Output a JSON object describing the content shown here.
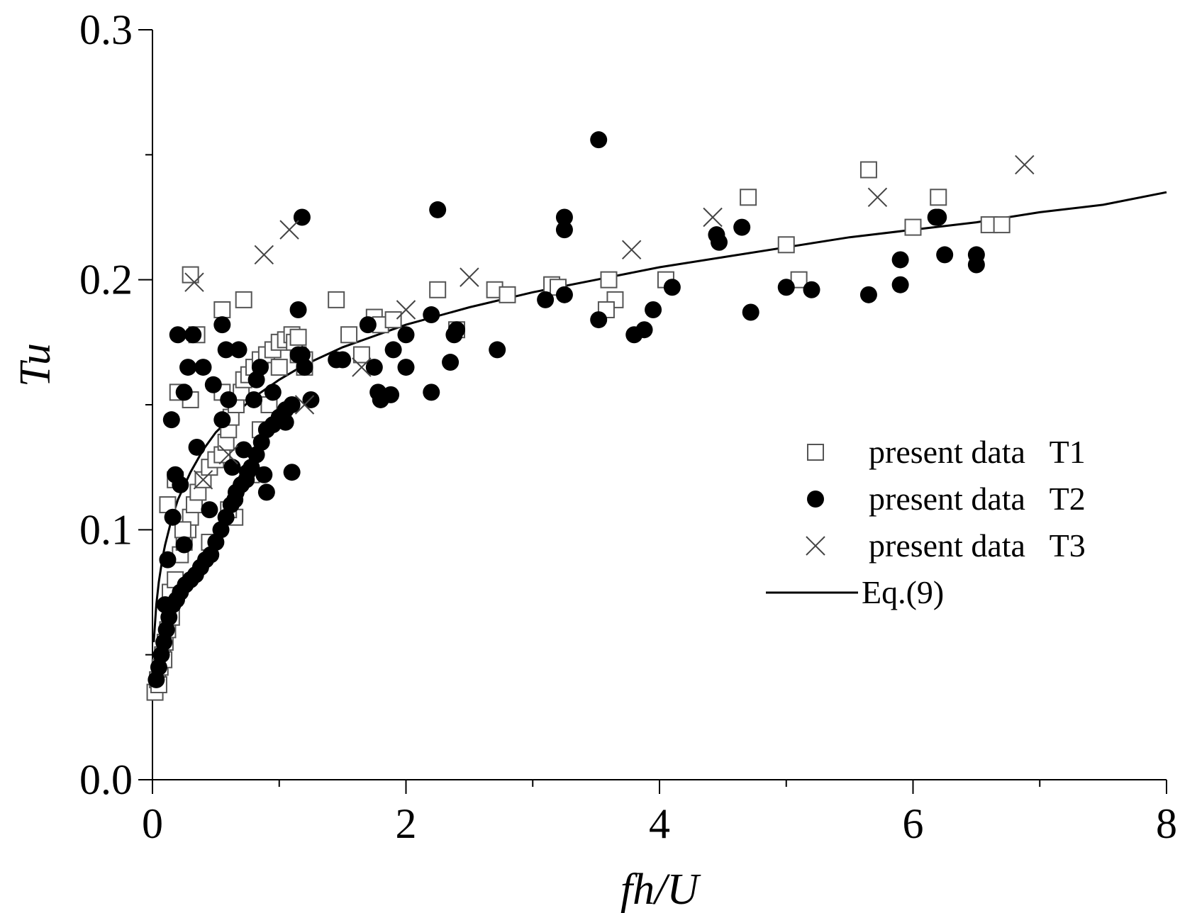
{
  "chart_data": {
    "type": "scatter",
    "title": "",
    "xlabel": "fh/U",
    "ylabel": "Tu",
    "xlim": [
      0,
      8
    ],
    "ylim": [
      0,
      0.3
    ],
    "xticks": [
      0,
      2,
      4,
      6,
      8
    ],
    "xtick_labels": [
      "0",
      "2",
      "4",
      "6",
      "8"
    ],
    "yticks": [
      0,
      0.1,
      0.2,
      0.3
    ],
    "ytick_labels": [
      "0.0",
      "0.1",
      "0.2",
      "0.3"
    ],
    "grid": false,
    "legend_position": "right",
    "series": [
      {
        "name": "present data   T1",
        "marker": "open-square",
        "color": "#000000",
        "x": [
          0.02,
          0.04,
          0.06,
          0.08,
          0.1,
          0.12,
          0.15,
          0.05,
          0.09,
          0.14,
          0.18,
          0.22,
          0.25,
          0.28,
          0.3,
          0.33,
          0.36,
          0.4,
          0.45,
          0.5,
          0.55,
          0.58,
          0.6,
          0.62,
          0.66,
          0.7,
          0.72,
          0.76,
          0.8,
          0.85,
          0.9,
          0.95,
          1.0,
          1.05,
          1.1,
          1.15,
          1.2,
          0.2,
          0.35,
          0.55,
          0.65,
          0.78,
          0.92,
          1.0,
          1.12,
          1.2,
          1.45,
          1.55,
          1.65,
          1.75,
          1.8,
          1.9,
          2.25,
          2.4,
          2.7,
          2.8,
          3.15,
          3.2,
          3.6,
          3.65,
          3.58,
          4.05,
          4.7,
          5.0,
          5.1,
          5.65,
          6.0,
          6.2,
          6.6,
          6.7,
          0.3,
          0.55,
          0.72,
          1.15,
          0.12,
          0.18,
          0.24,
          0.3,
          0.45,
          0.6,
          0.85
        ],
        "y": [
          0.035,
          0.04,
          0.045,
          0.05,
          0.055,
          0.06,
          0.065,
          0.038,
          0.048,
          0.075,
          0.08,
          0.09,
          0.095,
          0.1,
          0.105,
          0.11,
          0.115,
          0.12,
          0.125,
          0.128,
          0.13,
          0.135,
          0.14,
          0.145,
          0.15,
          0.155,
          0.16,
          0.162,
          0.165,
          0.168,
          0.17,
          0.172,
          0.175,
          0.176,
          0.178,
          0.17,
          0.165,
          0.155,
          0.178,
          0.188,
          0.105,
          0.122,
          0.15,
          0.165,
          0.175,
          0.168,
          0.192,
          0.178,
          0.17,
          0.185,
          0.182,
          0.184,
          0.196,
          0.18,
          0.196,
          0.194,
          0.198,
          0.197,
          0.2,
          0.192,
          0.188,
          0.2,
          0.233,
          0.214,
          0.2,
          0.244,
          0.221,
          0.233,
          0.222,
          0.222,
          0.202,
          0.155,
          0.192,
          0.177,
          0.11,
          0.12,
          0.1,
          0.152,
          0.095,
          0.108,
          0.14
        ]
      },
      {
        "name": "present data   T2",
        "marker": "filled-circle",
        "color": "#000000",
        "x": [
          0.03,
          0.05,
          0.07,
          0.09,
          0.11,
          0.13,
          0.16,
          0.19,
          0.22,
          0.26,
          0.3,
          0.34,
          0.38,
          0.42,
          0.46,
          0.5,
          0.54,
          0.58,
          0.62,
          0.66,
          0.7,
          0.74,
          0.78,
          0.82,
          0.86,
          0.9,
          0.95,
          1.0,
          1.05,
          1.1,
          1.15,
          1.2,
          0.12,
          0.16,
          0.22,
          0.25,
          0.28,
          0.32,
          0.4,
          0.48,
          0.55,
          0.58,
          0.63,
          0.68,
          0.72,
          0.8,
          0.85,
          0.9,
          1.1,
          1.18,
          1.5,
          1.7,
          1.75,
          1.8,
          1.9,
          2.0,
          2.2,
          2.35,
          2.4,
          2.72,
          3.1,
          3.25,
          3.52,
          3.8,
          3.88,
          3.95,
          4.1,
          4.45,
          4.65,
          4.72,
          5.0,
          5.2,
          5.65,
          5.9,
          6.2,
          6.25,
          6.5,
          6.5,
          2.25,
          3.25,
          3.52,
          1.18,
          0.55,
          0.1,
          0.15,
          0.2,
          0.18,
          0.25,
          0.35,
          0.45,
          0.6,
          0.65,
          0.75,
          0.82,
          0.88,
          0.95,
          1.05,
          1.15,
          1.25,
          1.45,
          1.78,
          1.88,
          2.0,
          2.2,
          2.38,
          3.25,
          4.47,
          5.9,
          6.18
        ],
        "y": [
          0.04,
          0.045,
          0.05,
          0.055,
          0.06,
          0.065,
          0.07,
          0.072,
          0.075,
          0.078,
          0.08,
          0.082,
          0.085,
          0.088,
          0.09,
          0.095,
          0.1,
          0.105,
          0.11,
          0.115,
          0.118,
          0.12,
          0.125,
          0.13,
          0.135,
          0.14,
          0.142,
          0.145,
          0.148,
          0.15,
          0.17,
          0.165,
          0.088,
          0.105,
          0.118,
          0.155,
          0.165,
          0.178,
          0.165,
          0.158,
          0.182,
          0.172,
          0.125,
          0.172,
          0.132,
          0.152,
          0.165,
          0.115,
          0.123,
          0.17,
          0.168,
          0.182,
          0.165,
          0.152,
          0.172,
          0.165,
          0.155,
          0.167,
          0.18,
          0.172,
          0.192,
          0.194,
          0.184,
          0.178,
          0.18,
          0.188,
          0.197,
          0.218,
          0.221,
          0.187,
          0.197,
          0.196,
          0.194,
          0.198,
          0.225,
          0.21,
          0.206,
          0.21,
          0.228,
          0.225,
          0.256,
          0.225,
          0.144,
          0.07,
          0.144,
          0.178,
          0.122,
          0.094,
          0.133,
          0.108,
          0.152,
          0.112,
          0.123,
          0.16,
          0.122,
          0.155,
          0.143,
          0.188,
          0.152,
          0.168,
          0.155,
          0.154,
          0.178,
          0.186,
          0.178,
          0.22,
          0.215,
          0.208,
          0.225
        ]
      },
      {
        "name": "present data   T3",
        "marker": "cross",
        "color": "#000000",
        "x": [
          0.33,
          0.88,
          1.08,
          1.65,
          2.0,
          2.5,
          3.78,
          4.42,
          5.72,
          6.88,
          0.4,
          0.6,
          1.2
        ],
        "y": [
          0.199,
          0.21,
          0.22,
          0.165,
          0.188,
          0.201,
          0.212,
          0.225,
          0.233,
          0.246,
          0.12,
          0.13,
          0.15
        ]
      },
      {
        "name": "Eq.(9)",
        "marker": "line",
        "color": "#000000",
        "x": [
          0.01,
          0.03,
          0.05,
          0.08,
          0.1,
          0.15,
          0.2,
          0.3,
          0.4,
          0.5,
          0.6,
          0.8,
          1.0,
          1.2,
          1.5,
          2.0,
          2.5,
          3.0,
          3.5,
          4.0,
          4.5,
          5.0,
          5.5,
          6.0,
          6.5,
          7.0,
          7.5,
          8.0
        ],
        "y": [
          0.055,
          0.07,
          0.079,
          0.089,
          0.094,
          0.104,
          0.112,
          0.123,
          0.132,
          0.139,
          0.144,
          0.153,
          0.16,
          0.166,
          0.173,
          0.182,
          0.189,
          0.195,
          0.2,
          0.205,
          0.209,
          0.213,
          0.217,
          0.22,
          0.223,
          0.227,
          0.23,
          0.235
        ]
      }
    ]
  }
}
